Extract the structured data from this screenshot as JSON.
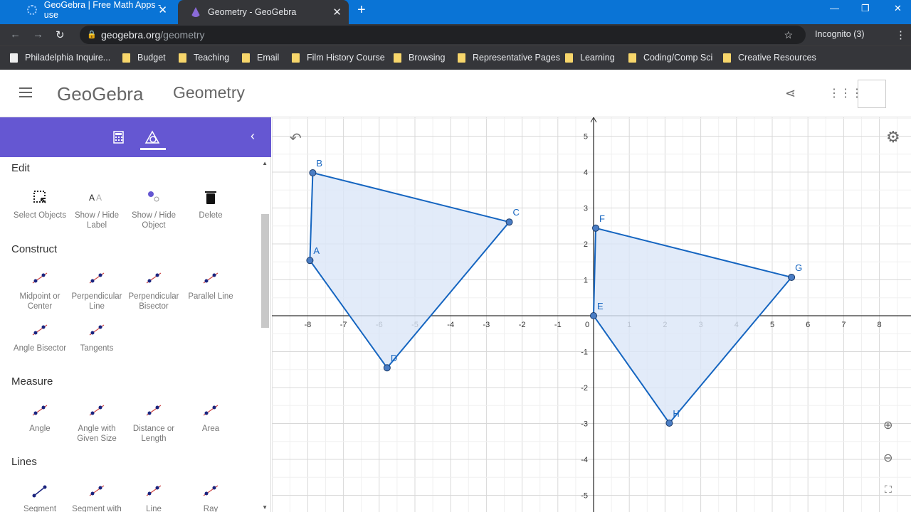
{
  "browser": {
    "tabs": [
      {
        "title": "GeoGebra | Free Math Apps - use"
      },
      {
        "title": "Geometry - GeoGebra"
      }
    ],
    "url_host": "geogebra.org",
    "url_path": "/geometry",
    "incognito": "Incognito (3)",
    "bookmarks": [
      "Philadelphia Inquire...",
      "Budget",
      "Teaching",
      "Email",
      "Film History Course",
      "Browsing",
      "Representative Pages",
      "Learning",
      "Coding/Comp Sci",
      "Creative Resources"
    ]
  },
  "app": {
    "logo": "GeoGebra",
    "title": "Geometry"
  },
  "tools": {
    "sections": [
      {
        "title": "Edit",
        "items": [
          "Select Objects",
          "Show / Hide Label",
          "Show / Hide Object",
          "Delete"
        ]
      },
      {
        "title": "Construct",
        "items": [
          "Midpoint or Center",
          "Perpendicular Line",
          "Perpendicular Bisector",
          "Parallel Line",
          "Angle Bisector",
          "Tangents"
        ]
      },
      {
        "title": "Measure",
        "items": [
          "Angle",
          "Angle with Given Size",
          "Distance or Length",
          "Area"
        ]
      },
      {
        "title": "Lines",
        "items": [
          "Segment",
          "Segment with",
          "Line",
          "Ray"
        ]
      }
    ]
  },
  "graphics": {
    "xrange": [
      -9,
      8.9
    ],
    "yrange": [
      -5.5,
      5.5
    ],
    "grid": true,
    "x_ticks": [
      -8,
      -7,
      -6,
      -5,
      -4,
      -3,
      -2,
      -1,
      1,
      2,
      3,
      4,
      5,
      6,
      7,
      8
    ],
    "y_ticks": [
      -5,
      -4,
      -3,
      -2,
      -1,
      1,
      2,
      3,
      4,
      5
    ],
    "origin_label": "0",
    "color": "#1565c0",
    "fill": "#dbe6f7",
    "polygons": [
      {
        "points": [
          {
            "label": "A",
            "x": -7.94,
            "y": 1.54
          },
          {
            "label": "B",
            "x": -7.86,
            "y": 3.98
          },
          {
            "label": "C",
            "x": -2.36,
            "y": 2.61
          },
          {
            "label": "D",
            "x": -5.78,
            "y": -1.45
          }
        ]
      },
      {
        "points": [
          {
            "label": "E",
            "x": 0,
            "y": 0
          },
          {
            "label": "F",
            "x": 0.06,
            "y": 2.44
          },
          {
            "label": "G",
            "x": 5.54,
            "y": 1.07
          },
          {
            "label": "H",
            "x": 2.12,
            "y": -2.99
          }
        ]
      }
    ]
  }
}
